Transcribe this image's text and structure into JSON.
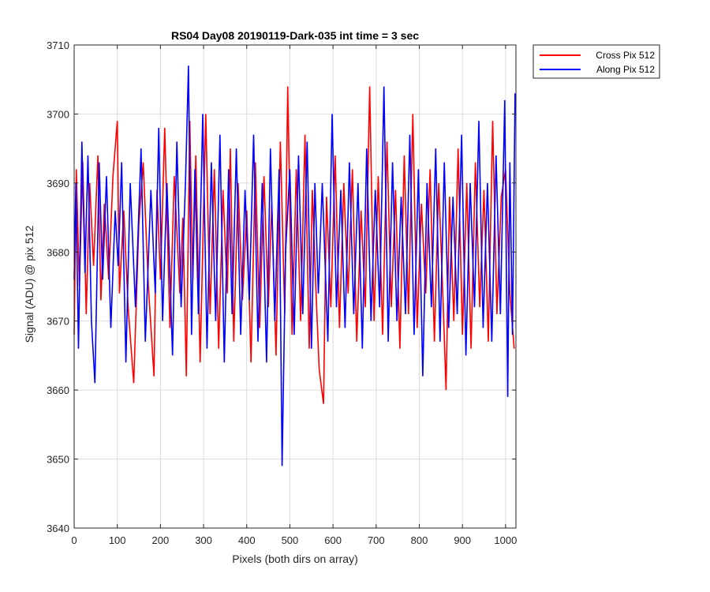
{
  "chart_data": {
    "type": "line",
    "title": "RS04 Day08 20190119-Dark-035 int time = 3 sec",
    "xlabel": "Pixels (both dirs on array)",
    "ylabel": "Signal (ADU) @ pix 512",
    "xlim": [
      0,
      1024
    ],
    "ylim": [
      3640,
      3710
    ],
    "xticks": [
      0,
      100,
      200,
      300,
      400,
      500,
      600,
      700,
      800,
      900,
      1000
    ],
    "yticks": [
      3640,
      3650,
      3660,
      3670,
      3680,
      3690,
      3700,
      3710
    ],
    "grid": true,
    "legend_position": "outside-top-right",
    "series": [
      {
        "name": "Cross Pix 512",
        "color": "#ff0000",
        "x": [
          0,
          5,
          12,
          20,
          28,
          36,
          45,
          55,
          62,
          70,
          80,
          90,
          100,
          105,
          115,
          125,
          138,
          150,
          160,
          172,
          185,
          192,
          200,
          210,
          222,
          232,
          245,
          252,
          260,
          268,
          275,
          282,
          292,
          305,
          315,
          325,
          335,
          345,
          355,
          362,
          370,
          380,
          390,
          400,
          410,
          420,
          430,
          440,
          450,
          458,
          468,
          478,
          488,
          495,
          505,
          515,
          525,
          535,
          545,
          552,
          560,
          568,
          578,
          585,
          595,
          605,
          615,
          625,
          635,
          645,
          655,
          665,
          675,
          685,
          695,
          705,
          715,
          725,
          735,
          745,
          755,
          765,
          775,
          785,
          795,
          805,
          815,
          825,
          835,
          845,
          855,
          862,
          870,
          880,
          890,
          900,
          910,
          920,
          930,
          940,
          950,
          960,
          970,
          980,
          990,
          1000,
          1010,
          1020
        ],
        "values": [
          3668,
          3692,
          3675,
          3693,
          3671,
          3690,
          3678,
          3694,
          3673,
          3687,
          3676,
          3691,
          3699,
          3674,
          3686,
          3672,
          3661,
          3684,
          3693,
          3675,
          3662,
          3689,
          3676,
          3698,
          3669,
          3691,
          3674,
          3685,
          3662,
          3699,
          3676,
          3694,
          3664,
          3700,
          3671,
          3692,
          3666,
          3689,
          3674,
          3695,
          3667,
          3690,
          3673,
          3686,
          3664,
          3693,
          3669,
          3691,
          3672,
          3687,
          3665,
          3696,
          3671,
          3704,
          3668,
          3692,
          3670,
          3697,
          3666,
          3689,
          3675,
          3663,
          3658,
          3688,
          3672,
          3694,
          3669,
          3690,
          3674,
          3692,
          3667,
          3686,
          3672,
          3704,
          3670,
          3691,
          3668,
          3696,
          3672,
          3689,
          3666,
          3694,
          3671,
          3700,
          3669,
          3687,
          3674,
          3692,
          3667,
          3690,
          3673,
          3660,
          3688,
          3670,
          3695,
          3668,
          3690,
          3666,
          3693,
          3672,
          3689,
          3667,
          3699,
          3671,
          3688,
          3692,
          3674,
          3666
        ]
      },
      {
        "name": "Along Pix 512",
        "color": "#0000ff",
        "x": [
          0,
          4,
          10,
          18,
          25,
          32,
          40,
          48,
          58,
          66,
          75,
          85,
          95,
          102,
          110,
          120,
          130,
          142,
          155,
          165,
          178,
          188,
          196,
          205,
          215,
          228,
          238,
          248,
          258,
          265,
          272,
          280,
          288,
          298,
          308,
          318,
          328,
          338,
          348,
          358,
          366,
          376,
          386,
          396,
          406,
          416,
          426,
          436,
          446,
          455,
          465,
          475,
          482,
          490,
          500,
          510,
          520,
          530,
          540,
          550,
          558,
          566,
          575,
          588,
          598,
          608,
          618,
          628,
          638,
          648,
          658,
          668,
          678,
          688,
          698,
          708,
          718,
          728,
          738,
          748,
          758,
          768,
          778,
          788,
          798,
          808,
          818,
          828,
          838,
          848,
          858,
          868,
          878,
          888,
          898,
          908,
          918,
          928,
          938,
          948,
          958,
          968,
          978,
          988,
          998,
          1005,
          1010,
          1016,
          1022
        ],
        "values": [
          3676,
          3690,
          3666,
          3696,
          3677,
          3694,
          3670,
          3661,
          3693,
          3676,
          3691,
          3669,
          3686,
          3678,
          3693,
          3664,
          3690,
          3672,
          3695,
          3667,
          3689,
          3674,
          3698,
          3670,
          3690,
          3665,
          3696,
          3672,
          3690,
          3707,
          3668,
          3692,
          3671,
          3700,
          3666,
          3693,
          3670,
          3697,
          3664,
          3692,
          3671,
          3695,
          3668,
          3689,
          3673,
          3697,
          3667,
          3690,
          3664,
          3695,
          3670,
          3692,
          3649,
          3680,
          3692,
          3668,
          3694,
          3671,
          3696,
          3666,
          3690,
          3674,
          3690,
          3667,
          3700,
          3672,
          3689,
          3669,
          3693,
          3671,
          3690,
          3666,
          3695,
          3670,
          3689,
          3672,
          3704,
          3667,
          3693,
          3670,
          3688,
          3671,
          3697,
          3668,
          3692,
          3662,
          3690,
          3672,
          3695,
          3667,
          3693,
          3669,
          3688,
          3671,
          3697,
          3665,
          3690,
          3672,
          3699,
          3669,
          3690,
          3667,
          3694,
          3671,
          3702,
          3659,
          3693,
          3668,
          3703
        ]
      }
    ]
  }
}
